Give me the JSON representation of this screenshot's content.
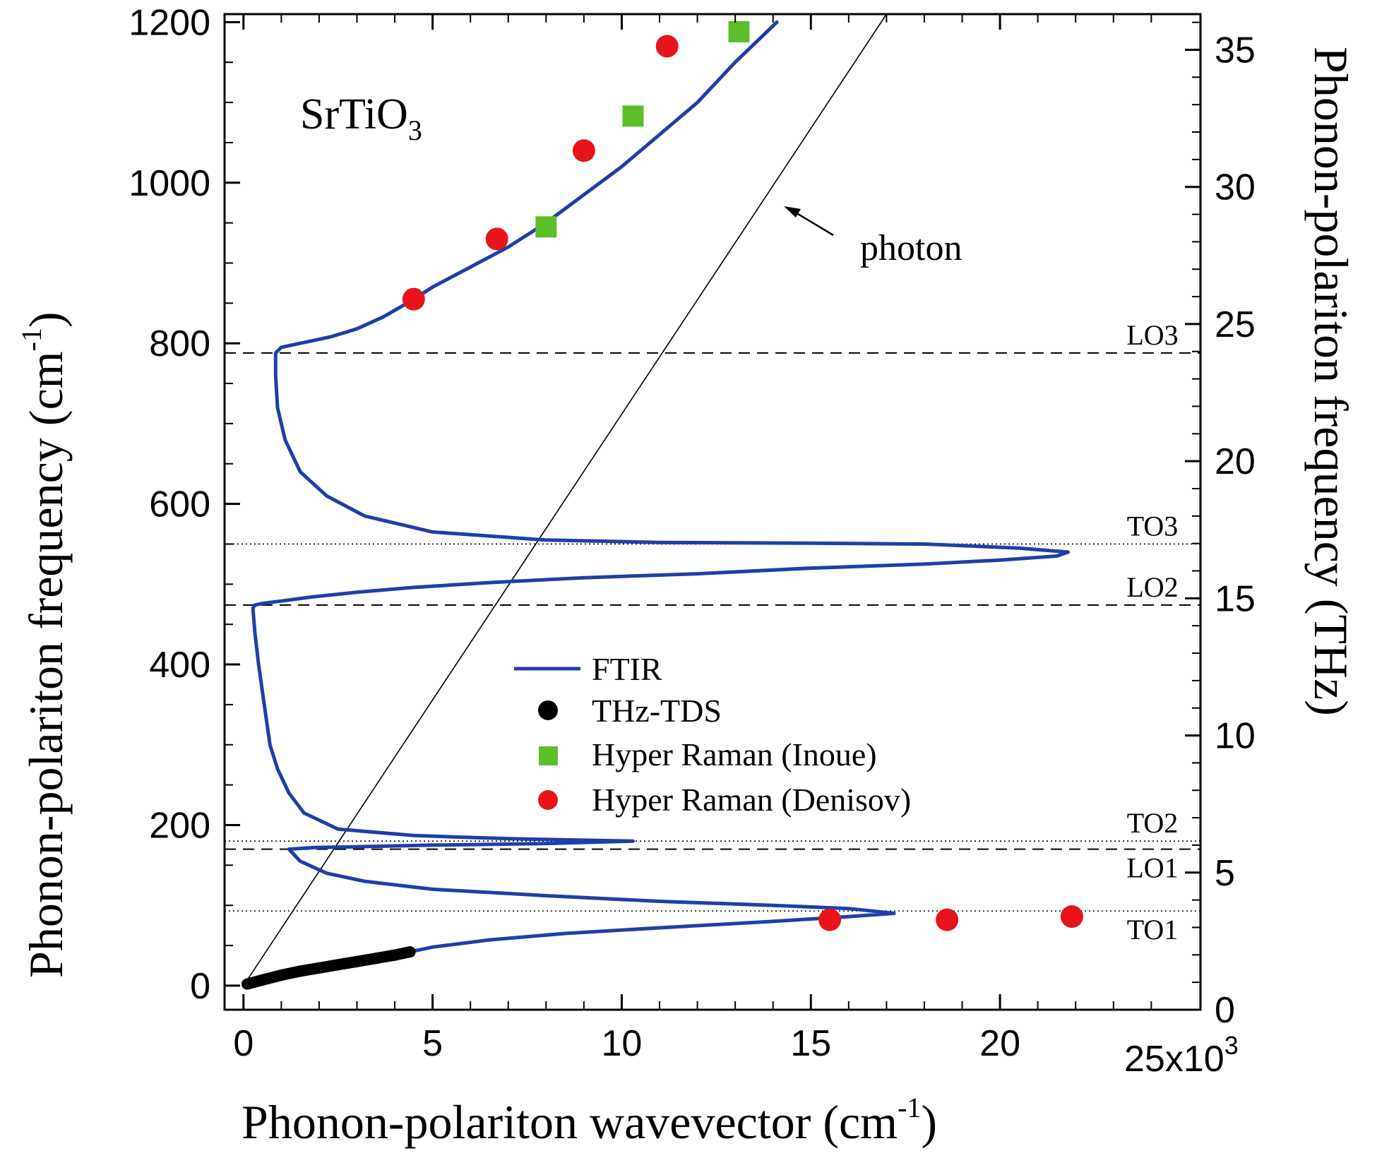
{
  "chart_data": {
    "type": "scatter",
    "title": "",
    "sample_label": {
      "main": "SrTiO",
      "subscript": "3"
    },
    "xlabel": {
      "main": "Phonon-polariton wavevector (cm",
      "superscript": "-1",
      "suffix": ")"
    },
    "ylabel": {
      "main": "Phonon-polariton frequency (cm",
      "superscript": "-1",
      "suffix": ")"
    },
    "y2label": "Phonon-polariton frequency (THz)",
    "xlim": [
      -0.5,
      25.3
    ],
    "ylim": [
      -30,
      1210
    ],
    "y2lim": [
      0,
      36.3
    ],
    "x_scale_note": {
      "main": "25x10",
      "superscript": "3"
    },
    "xticks": [
      0,
      5,
      10,
      15,
      20
    ],
    "xtick_labels": [
      "0",
      "5",
      "10",
      "15",
      "20"
    ],
    "yticks": [
      0,
      200,
      400,
      600,
      800,
      1000,
      1200
    ],
    "ytick_labels": [
      "0",
      "200",
      "400",
      "600",
      "800",
      "1000",
      "1200"
    ],
    "y2ticks": [
      0,
      5,
      10,
      15,
      20,
      25,
      30,
      35
    ],
    "y2tick_labels": [
      "0",
      "5",
      "10",
      "15",
      "20",
      "25",
      "30",
      "35"
    ],
    "reference_lines": [
      {
        "name": "LO3",
        "y": 788,
        "style": "dashed"
      },
      {
        "name": "TO3",
        "y": 550,
        "style": "dotted"
      },
      {
        "name": "LO2",
        "y": 474,
        "style": "dashed"
      },
      {
        "name": "TO2",
        "y": 180,
        "style": "dotted"
      },
      {
        "name": "LO1",
        "y": 170,
        "style": "dashed"
      },
      {
        "name": "TO1",
        "y": 93,
        "style": "dotted"
      }
    ],
    "photon_line": {
      "label": "photon",
      "x": [
        0,
        17
      ],
      "y": [
        0,
        1210
      ]
    },
    "series": [
      {
        "name": "FTIR",
        "kind": "line",
        "color": "#1f3fa8",
        "x": [
          14.1,
          13.0,
          12.0,
          11.0,
          10.0,
          9.0,
          8.0,
          7.0,
          6.0,
          5.0,
          4.4,
          3.7,
          3.0,
          2.3,
          1.8,
          1.4,
          1.0,
          0.85,
          0.85,
          0.9,
          1.1,
          1.5,
          2.2,
          3.2,
          5.0,
          8.0,
          11.0,
          15.0,
          18.0,
          20.5,
          21.8,
          21.5,
          20.0,
          18.0,
          15.0,
          12.0,
          9.0,
          6.5,
          4.5,
          3.0,
          1.8,
          1.0,
          0.5,
          0.3,
          0.25,
          0.3,
          0.4,
          0.55,
          0.7,
          0.9,
          1.2,
          1.6,
          2.5,
          4.5,
          7.0,
          10.3,
          8.0,
          5.0,
          3.0,
          1.9,
          1.2,
          1.5,
          2.2,
          3.2,
          5.0,
          8.0,
          11.0,
          14.0,
          16.0,
          17.2,
          16.0,
          14.0,
          11.0,
          8.5,
          6.5,
          5.0,
          4.4
        ],
        "y": [
          1200,
          1150,
          1100,
          1060,
          1020,
          985,
          950,
          920,
          895,
          870,
          852,
          833,
          818,
          808,
          803,
          799,
          795,
          788,
          760,
          720,
          680,
          640,
          610,
          585,
          565,
          555,
          552,
          551,
          550,
          545,
          540,
          535,
          530,
          525,
          520,
          513,
          508,
          502,
          496,
          490,
          484,
          479,
          476,
          474,
          470,
          440,
          400,
          350,
          300,
          270,
          240,
          215,
          195,
          187,
          183,
          180,
          177,
          175,
          173,
          172,
          170,
          155,
          140,
          130,
          120,
          112,
          105,
          100,
          96,
          90,
          86,
          80,
          72,
          65,
          57,
          48,
          42
        ]
      },
      {
        "name": "THz-TDS",
        "kind": "marker-line",
        "color": "#000000",
        "x": [
          0.1,
          0.5,
          1.0,
          1.5,
          2.0,
          2.5,
          3.0,
          3.5,
          4.0,
          4.4
        ],
        "y": [
          2,
          7,
          13,
          18,
          22,
          26,
          30,
          34,
          38,
          42
        ]
      },
      {
        "name": "Hyper Raman (Inoue)",
        "kind": "marker",
        "marker": "square",
        "color": "#5cbf2a",
        "x": [
          8.0,
          10.3,
          13.1
        ],
        "y": [
          945,
          1083,
          1188
        ]
      },
      {
        "name": "Hyper Raman (Denisov)",
        "kind": "marker",
        "marker": "circle",
        "color": "#e8141c",
        "x": [
          4.5,
          6.7,
          9.0,
          11.2,
          15.5,
          18.6,
          21.9
        ],
        "y": [
          855,
          930,
          1040,
          1170,
          82,
          82,
          86
        ]
      }
    ],
    "legend": {
      "position": "center",
      "entries": [
        "FTIR",
        "THz-TDS",
        "Hyper Raman (Inoue)",
        "Hyper Raman (Denisov)"
      ]
    },
    "grid": false
  }
}
